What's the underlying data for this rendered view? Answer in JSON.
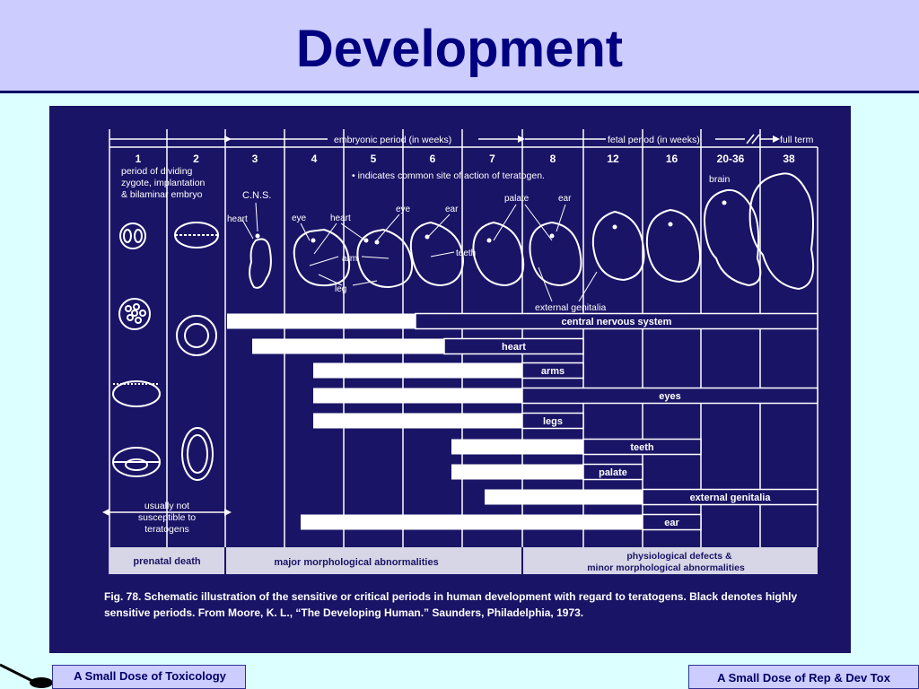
{
  "slide": {
    "title": "Development"
  },
  "footer": {
    "left_label": "A Small Dose of Toxicology",
    "right_label": "A Small Dose of Rep & Dev Tox"
  },
  "figure": {
    "period_headers": {
      "embryonic": "embryonic period (in weeks)",
      "fetal": "fetal period (in weeks)",
      "full_term": "full term"
    },
    "weeks": [
      "1",
      "2",
      "3",
      "4",
      "5",
      "6",
      "7",
      "8",
      "12",
      "16",
      "20-36",
      "38"
    ],
    "week1_note": [
      "period of dividing",
      "zygote, implantation",
      "& bilaminar embryo"
    ],
    "teratogen_note": "• indicates common site of action of teratogen.",
    "embryo_labels": {
      "cns": "C.N.S.",
      "heart_1": "heart",
      "eye_1": "eye",
      "heart_2": "heart",
      "eye_2": "eye",
      "ear_1": "ear",
      "arm": "arm",
      "leg": "leg",
      "teeth": "teeth",
      "palate": "palate",
      "ear_2": "ear",
      "brain": "brain",
      "external_genitalia": "external genitalia"
    },
    "rows": [
      {
        "label": "central nervous system"
      },
      {
        "label": "heart"
      },
      {
        "label": "arms"
      },
      {
        "label": "eyes"
      },
      {
        "label": "legs"
      },
      {
        "label": "teeth"
      },
      {
        "label": "palate"
      },
      {
        "label": "external genitalia"
      },
      {
        "label": "ear"
      }
    ],
    "susceptibility_note": [
      "usually not",
      "susceptible to",
      "teratogens"
    ],
    "outcome_band": {
      "prenatal_death": "prenatal death",
      "major": "major morphological abnormalities",
      "physiological": "physiological defects &",
      "minor": "minor morphological abnormalities"
    },
    "caption": "Fig. 78. Schematic illustration of the sensitive or critical periods in human development with regard to teratogens. Black denotes highly sensitive periods. From Moore, K. L., “The Developing Human.” Saunders, Philadelphia, 1973."
  }
}
